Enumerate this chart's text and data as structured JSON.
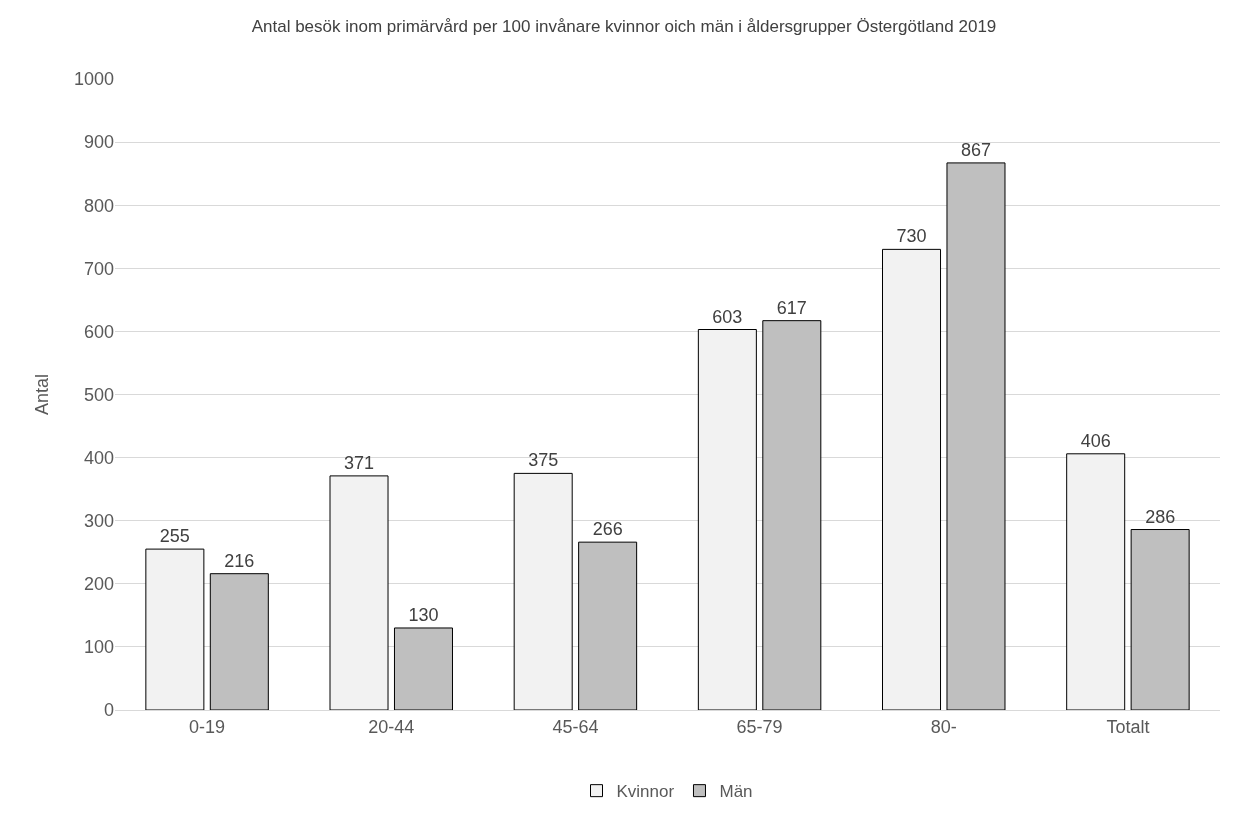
{
  "chart_data": {
    "type": "bar",
    "title": "Antal besök inom primärvård per 100 invånare kvinnor oich män i åldersgrupper Östergötland 2019",
    "ylabel": "Antal",
    "categories": [
      "0-19",
      "20-44",
      "45-64",
      "65-79",
      "80-",
      "Totalt"
    ],
    "series": [
      {
        "name": "Kvinnor",
        "color": "#f2f2f2",
        "values": [
          255,
          371,
          375,
          603,
          730,
          406
        ]
      },
      {
        "name": "Män",
        "color": "#bfbfbf",
        "values": [
          216,
          130,
          266,
          617,
          867,
          286
        ]
      }
    ],
    "ylim": [
      0,
      1000
    ],
    "yticks": [
      0,
      100,
      200,
      300,
      400,
      500,
      600,
      700,
      800,
      900,
      1000
    ],
    "grid": "y",
    "legend": "bottom",
    "data_labels": true
  }
}
